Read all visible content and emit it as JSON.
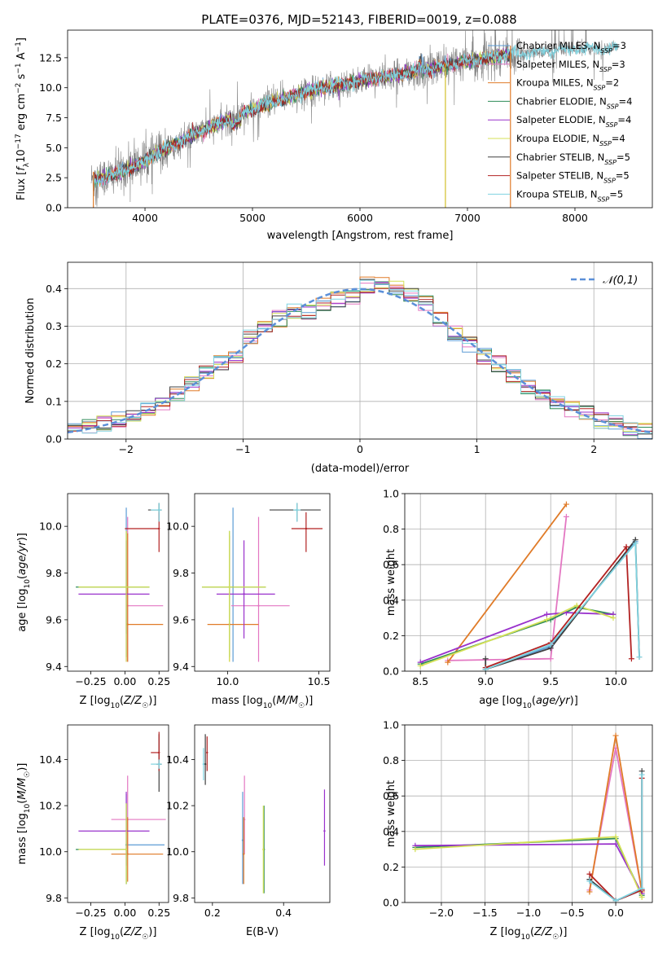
{
  "figure_title": "PLATE=0376, MJD=52143, FIBERID=0019, z=0.088",
  "model_names": [
    "Chabrier MILES, N_SSP=3",
    "Salpeter MILES, N_SSP=3",
    "Kroupa MILES, N_SSP=2",
    "Chabrier ELODIE, N_SSP=4",
    "Salpeter ELODIE, N_SSP=4",
    "Kroupa ELODIE, N_SSP=4",
    "Chabrier STELIB, N_SSP=5",
    "Salpeter STELIB, N_SSP=5",
    "Kroupa STELIB, N_SSP=5"
  ],
  "model_colors": [
    "#5b9bd5",
    "#e377c2",
    "#e07b28",
    "#2e8b57",
    "#9932cc",
    "#d4e157",
    "#404040",
    "#b22222",
    "#7fd3e0"
  ],
  "data_color": "#808080",
  "chart_data": [
    {
      "type": "line",
      "panel": "spectrum",
      "xlabel": "wavelength [Angstrom, rest frame]",
      "ylabel": "Flux [f_λ 10^-17 erg cm^-2 s^-1 A^-1]",
      "xlim": [
        3280,
        8720
      ],
      "ylim": [
        0,
        14.8
      ],
      "xticks": [
        4000,
        5000,
        6000,
        7000,
        8000
      ],
      "yticks": [
        0.0,
        2.5,
        5.0,
        7.5,
        10.0,
        12.5
      ],
      "data_range": [
        3500,
        8400
      ],
      "model_range": [
        3520,
        7400
      ],
      "continuum": {
        "x": [
          3500,
          3700,
          4000,
          4200,
          4500,
          5000,
          5500,
          6000,
          6500,
          7000,
          7400,
          8000,
          8400
        ],
        "y": [
          2.3,
          2.7,
          3.9,
          4.9,
          6.3,
          8.2,
          9.7,
          10.6,
          11.3,
          12.2,
          12.8,
          13.2,
          13.3
        ]
      },
      "legend": "top-right",
      "grid": false
    },
    {
      "type": "line",
      "panel": "residual-histogram",
      "xlabel": "(data-model)/error",
      "ylabel": "Normed distribution",
      "xlim": [
        -2.5,
        2.5
      ],
      "ylim": [
        0,
        0.47
      ],
      "xticks": [
        -2,
        -1,
        0,
        1,
        2
      ],
      "yticks": [
        0.0,
        0.1,
        0.2,
        0.3,
        0.4
      ],
      "bin_edges": [
        -2.5,
        -2.375,
        -2.25,
        -2.125,
        -2.0,
        -1.875,
        -1.75,
        -1.625,
        -1.5,
        -1.375,
        -1.25,
        -1.125,
        -1.0,
        -0.875,
        -0.75,
        -0.625,
        -0.5,
        -0.375,
        -0.25,
        -0.125,
        0.0,
        0.125,
        0.25,
        0.375,
        0.5,
        0.625,
        0.75,
        0.875,
        1.0,
        1.125,
        1.25,
        1.375,
        1.5,
        1.625,
        1.75,
        1.875,
        2.0,
        2.125,
        2.25,
        2.375,
        2.5
      ],
      "base_counts": [
        0.03,
        0.03,
        0.04,
        0.05,
        0.06,
        0.08,
        0.1,
        0.12,
        0.15,
        0.18,
        0.2,
        0.22,
        0.27,
        0.3,
        0.32,
        0.34,
        0.34,
        0.36,
        0.37,
        0.38,
        0.41,
        0.42,
        0.4,
        0.38,
        0.36,
        0.32,
        0.28,
        0.25,
        0.22,
        0.2,
        0.17,
        0.14,
        0.12,
        0.1,
        0.08,
        0.07,
        0.05,
        0.04,
        0.03,
        0.02
      ],
      "reference_curve": "N(0,1)",
      "legend": [
        {
          "label": "𝒩(0,1)",
          "style": "dashed",
          "color": "#5b8fd8"
        }
      ],
      "grid": true
    },
    {
      "type": "scatter",
      "panel": "age-vs-metallicity",
      "xlabel": "Z [log10(Z/Z☉)]",
      "ylabel": "age  [log10(age/yr)]",
      "xlim": [
        -0.42,
        0.32
      ],
      "ylim": [
        9.38,
        10.14
      ],
      "xticks": [
        -0.25,
        0.0,
        0.25
      ],
      "yticks": [
        9.4,
        9.6,
        9.8,
        10.0
      ],
      "points": [
        {
          "model": 0,
          "x": 0.01,
          "y": 9.74,
          "xerr": [
            0.0,
            0.0
          ],
          "yerr": [
            0.2,
            0.34
          ]
        },
        {
          "model": 1,
          "x": 0.02,
          "y": 9.66,
          "xerr": [
            0.0,
            0.26
          ],
          "yerr": [
            0.24,
            0.38
          ]
        },
        {
          "model": 2,
          "x": 0.02,
          "y": 9.58,
          "xerr": [
            0.0,
            0.26
          ],
          "yerr": [
            0.16,
            0.39
          ]
        },
        {
          "model": 3,
          "x": 0.01,
          "y": 9.74,
          "xerr": [
            0.37,
            0.17
          ],
          "yerr": [
            0.3,
            0.24
          ]
        },
        {
          "model": 4,
          "x": 0.01,
          "y": 9.71,
          "xerr": [
            0.35,
            0.17
          ],
          "yerr": [
            0.29,
            0.23
          ]
        },
        {
          "model": 5,
          "x": 0.01,
          "y": 9.74,
          "xerr": [
            0.35,
            0.17
          ],
          "yerr": [
            0.32,
            0.24
          ]
        },
        {
          "model": 6,
          "x": 0.25,
          "y": 10.07,
          "xerr": [
            0.08,
            0.02
          ],
          "yerr": [
            0.05,
            0.03
          ]
        },
        {
          "model": 7,
          "x": 0.25,
          "y": 9.99,
          "xerr": [
            0.25,
            0.0
          ],
          "yerr": [
            0.1,
            0.07
          ]
        },
        {
          "model": 8,
          "x": 0.25,
          "y": 10.07,
          "xerr": [
            0.06,
            0.02
          ],
          "yerr": [
            0.05,
            0.03
          ]
        }
      ],
      "grid": false
    },
    {
      "type": "scatter",
      "panel": "age-vs-mass",
      "xlabel": "mass [log10(M/M☉)]",
      "ylabel": "",
      "xlim": [
        9.82,
        10.56
      ],
      "ylim": [
        9.38,
        10.14
      ],
      "xticks": [
        10.0,
        10.5
      ],
      "yticks": [
        9.4,
        9.6,
        9.8,
        10.0
      ],
      "points": [
        {
          "model": 0,
          "x": 10.03,
          "y": 9.74,
          "xerr": [
            0.0,
            0.0
          ],
          "yerr": [
            0.32,
            0.34
          ]
        },
        {
          "model": 1,
          "x": 10.17,
          "y": 9.66,
          "xerr": [
            0.15,
            0.17
          ],
          "yerr": [
            0.24,
            0.38
          ]
        },
        {
          "model": 2,
          "x": 10.01,
          "y": 9.58,
          "xerr": [
            0.12,
            0.16
          ],
          "yerr": [
            0.16,
            0.38
          ]
        },
        {
          "model": 3,
          "x": 10.01,
          "y": 9.74,
          "xerr": [
            0.15,
            0.2
          ],
          "yerr": [
            0.3,
            0.24
          ]
        },
        {
          "model": 4,
          "x": 10.09,
          "y": 9.71,
          "xerr": [
            0.15,
            0.17
          ],
          "yerr": [
            0.19,
            0.23
          ]
        },
        {
          "model": 5,
          "x": 10.01,
          "y": 9.74,
          "xerr": [
            0.15,
            0.2
          ],
          "yerr": [
            0.32,
            0.24
          ]
        },
        {
          "model": 6,
          "x": 10.38,
          "y": 10.07,
          "xerr": [
            0.15,
            0.13
          ],
          "yerr": [
            0.05,
            0.03
          ]
        },
        {
          "model": 7,
          "x": 10.43,
          "y": 9.99,
          "xerr": [
            0.08,
            0.09
          ],
          "yerr": [
            0.1,
            0.07
          ]
        },
        {
          "model": 8,
          "x": 10.38,
          "y": 10.07,
          "xerr": [
            0.02,
            0.02
          ],
          "yerr": [
            0.05,
            0.03
          ]
        }
      ],
      "grid": false
    },
    {
      "type": "line",
      "panel": "mass-weight-vs-age",
      "xlabel": "age  [log10(age/yr)]",
      "ylabel": "mass weight",
      "xlim": [
        8.38,
        10.28
      ],
      "ylim": [
        0.0,
        1.0
      ],
      "xticks": [
        8.5,
        9.0,
        9.5,
        10.0
      ],
      "yticks": [
        0.0,
        0.2,
        0.4,
        0.6,
        0.8,
        1.0
      ],
      "series": [
        {
          "model": 0,
          "x": [
            9.0,
            9.5,
            10.15
          ],
          "y": [
            0.01,
            0.14,
            0.73
          ]
        },
        {
          "model": 1,
          "x": [
            8.71,
            9.5,
            9.62
          ],
          "y": [
            0.06,
            0.07,
            0.87
          ]
        },
        {
          "model": 2,
          "x": [
            8.71,
            9.62
          ],
          "y": [
            0.05,
            0.94
          ]
        },
        {
          "model": 3,
          "x": [
            8.5,
            9.5,
            9.7,
            9.98
          ],
          "y": [
            0.04,
            0.29,
            0.36,
            0.32
          ]
        },
        {
          "model": 4,
          "x": [
            8.5,
            9.47,
            9.62,
            9.98
          ],
          "y": [
            0.05,
            0.32,
            0.33,
            0.32
          ]
        },
        {
          "model": 5,
          "x": [
            8.5,
            9.47,
            9.7,
            9.98
          ],
          "y": [
            0.03,
            0.29,
            0.37,
            0.3
          ]
        },
        {
          "model": 6,
          "x": [
            9.0,
            9.0,
            9.5,
            10.15,
            10.18
          ],
          "y": [
            0.07,
            0.01,
            0.13,
            0.74,
            0.08
          ]
        },
        {
          "model": 7,
          "x": [
            9.0,
            9.5,
            10.08,
            10.12
          ],
          "y": [
            0.02,
            0.16,
            0.7,
            0.07
          ]
        },
        {
          "model": 8,
          "x": [
            9.0,
            9.5,
            10.15,
            10.18
          ],
          "y": [
            0.01,
            0.15,
            0.72,
            0.08
          ]
        }
      ],
      "grid": true
    },
    {
      "type": "scatter",
      "panel": "mass-vs-metallicity",
      "xlabel": "Z [log10(Z/Z☉)]",
      "ylabel": "mass [log10(M/M☉)]",
      "xlim": [
        -0.42,
        0.32
      ],
      "ylim": [
        9.78,
        10.55
      ],
      "xticks": [
        -0.25,
        0.0,
        0.25
      ],
      "yticks": [
        9.8,
        10.0,
        10.2,
        10.4
      ],
      "points": [
        {
          "model": 0,
          "x": 0.01,
          "y": 10.03,
          "xerr": [
            0.0,
            0.28
          ],
          "yerr": [
            0.17,
            0.22
          ]
        },
        {
          "model": 1,
          "x": 0.02,
          "y": 10.14,
          "xerr": [
            0.12,
            0.28
          ],
          "yerr": [
            0.15,
            0.19
          ]
        },
        {
          "model": 2,
          "x": 0.02,
          "y": 9.99,
          "xerr": [
            0.12,
            0.26
          ],
          "yerr": [
            0.12,
            0.16
          ]
        },
        {
          "model": 3,
          "x": 0.01,
          "y": 10.01,
          "xerr": [
            0.37,
            0.0
          ],
          "yerr": [
            0.15,
            0.2
          ]
        },
        {
          "model": 4,
          "x": 0.01,
          "y": 10.09,
          "xerr": [
            0.35,
            0.17
          ],
          "yerr": [
            0.15,
            0.17
          ]
        },
        {
          "model": 5,
          "x": 0.01,
          "y": 10.01,
          "xerr": [
            0.35,
            0.0
          ],
          "yerr": [
            0.15,
            0.2
          ]
        },
        {
          "model": 6,
          "x": 0.25,
          "y": 10.38,
          "xerr": [
            0.02,
            0.02
          ],
          "yerr": [
            0.12,
            0.13
          ]
        },
        {
          "model": 7,
          "x": 0.25,
          "y": 10.43,
          "xerr": [
            0.06,
            0.0
          ],
          "yerr": [
            0.08,
            0.09
          ]
        },
        {
          "model": 8,
          "x": 0.25,
          "y": 10.38,
          "xerr": [
            0.06,
            0.02
          ],
          "yerr": [
            0.02,
            0.02
          ]
        }
      ],
      "grid": false
    },
    {
      "type": "scatter",
      "panel": "mass-vs-extinction",
      "xlabel": "E(B-V)",
      "ylabel": "",
      "xlim": [
        0.15,
        0.53
      ],
      "ylim": [
        9.78,
        10.55
      ],
      "xticks": [
        0.2,
        0.4
      ],
      "yticks": [
        9.8,
        10.0,
        10.2,
        10.4
      ],
      "points": [
        {
          "model": 0,
          "x": 0.285,
          "y": 10.05,
          "xerr": [
            0.0,
            0.0
          ],
          "yerr": [
            0.19,
            0.21
          ]
        },
        {
          "model": 1,
          "x": 0.29,
          "y": 10.14,
          "xerr": [
            0.0,
            0.0
          ],
          "yerr": [
            0.15,
            0.19
          ]
        },
        {
          "model": 2,
          "x": 0.288,
          "y": 9.99,
          "xerr": [
            0.0,
            0.0
          ],
          "yerr": [
            0.13,
            0.16
          ]
        },
        {
          "model": 3,
          "x": 0.345,
          "y": 10.01,
          "xerr": [
            0.0,
            0.0
          ],
          "yerr": [
            0.19,
            0.19
          ]
        },
        {
          "model": 4,
          "x": 0.515,
          "y": 10.09,
          "xerr": [
            0.0,
            0.0
          ],
          "yerr": [
            0.15,
            0.18
          ]
        },
        {
          "model": 5,
          "x": 0.343,
          "y": 10.01,
          "xerr": [
            0.0,
            0.0
          ],
          "yerr": [
            0.19,
            0.19
          ]
        },
        {
          "model": 6,
          "x": 0.18,
          "y": 10.38,
          "xerr": [
            0.0,
            0.0
          ],
          "yerr": [
            0.09,
            0.13
          ]
        },
        {
          "model": 7,
          "x": 0.185,
          "y": 10.43,
          "xerr": [
            0.0,
            0.0
          ],
          "yerr": [
            0.08,
            0.07
          ]
        },
        {
          "model": 8,
          "x": 0.175,
          "y": 10.38,
          "xerr": [
            0.0,
            0.0
          ],
          "yerr": [
            0.07,
            0.07
          ]
        }
      ],
      "grid": false
    },
    {
      "type": "line",
      "panel": "mass-weight-vs-metallicity",
      "xlabel": "Z [log10(Z/Z☉)]",
      "ylabel": "mass weight",
      "xlim": [
        -2.42,
        0.42
      ],
      "ylim": [
        0.0,
        1.0
      ],
      "xticks": [
        -2.0,
        -1.5,
        -1.0,
        -0.5,
        0.0
      ],
      "yticks": [
        0.0,
        0.2,
        0.4,
        0.6,
        0.8,
        1.0
      ],
      "series": [
        {
          "model": 0,
          "x": [
            -0.3,
            0.0,
            0.3
          ],
          "y": [
            0.13,
            0.01,
            0.07
          ]
        },
        {
          "model": 1,
          "x": [
            -0.3,
            0.0,
            0.3
          ],
          "y": [
            0.07,
            0.87,
            0.06
          ]
        },
        {
          "model": 2,
          "x": [
            -0.3,
            0.0,
            0.3
          ],
          "y": [
            0.06,
            0.94,
            0.06
          ]
        },
        {
          "model": 3,
          "x": [
            -2.3,
            0.0,
            0.3
          ],
          "y": [
            0.31,
            0.36,
            0.04
          ]
        },
        {
          "model": 4,
          "x": [
            -2.3,
            0.0,
            0.3
          ],
          "y": [
            0.32,
            0.33,
            0.05
          ]
        },
        {
          "model": 5,
          "x": [
            -2.3,
            0.0,
            0.3
          ],
          "y": [
            0.3,
            0.37,
            0.03
          ]
        },
        {
          "model": 6,
          "x": [
            -0.3,
            0.0,
            0.3,
            0.3
          ],
          "y": [
            0.13,
            0.01,
            0.07,
            0.74
          ]
        },
        {
          "model": 7,
          "x": [
            -0.3,
            0.0,
            0.3,
            0.3
          ],
          "y": [
            0.16,
            0.01,
            0.07,
            0.7
          ]
        },
        {
          "model": 8,
          "x": [
            -0.3,
            0.0,
            0.3,
            0.3
          ],
          "y": [
            0.12,
            0.01,
            0.08,
            0.72
          ]
        }
      ],
      "grid": true
    }
  ]
}
